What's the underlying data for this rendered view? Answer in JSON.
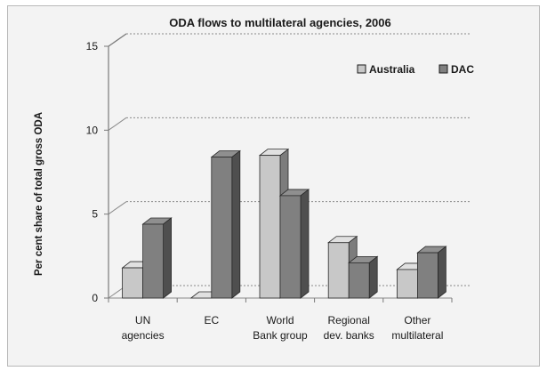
{
  "chart_data": {
    "type": "bar",
    "title": "ODA flows to multilateral agencies, 2006",
    "ylabel": "Per cent share of total gross ODA",
    "xlabel": "",
    "ylim": [
      0,
      15
    ],
    "yticks": [
      0,
      5,
      10,
      15
    ],
    "grid": true,
    "legend_position": "top-right",
    "categories": [
      [
        "UN",
        "agencies"
      ],
      [
        "EC"
      ],
      [
        "World",
        "Bank group"
      ],
      [
        "Regional",
        "dev. banks"
      ],
      [
        "Other",
        "multilateral"
      ]
    ],
    "series": [
      {
        "name": "Australia",
        "values": [
          1.8,
          0.0,
          8.5,
          3.3,
          1.7
        ],
        "color": "#c8c8c8"
      },
      {
        "name": "DAC",
        "values": [
          4.4,
          8.4,
          6.1,
          2.1,
          2.7
        ],
        "color": "#808080"
      }
    ]
  }
}
